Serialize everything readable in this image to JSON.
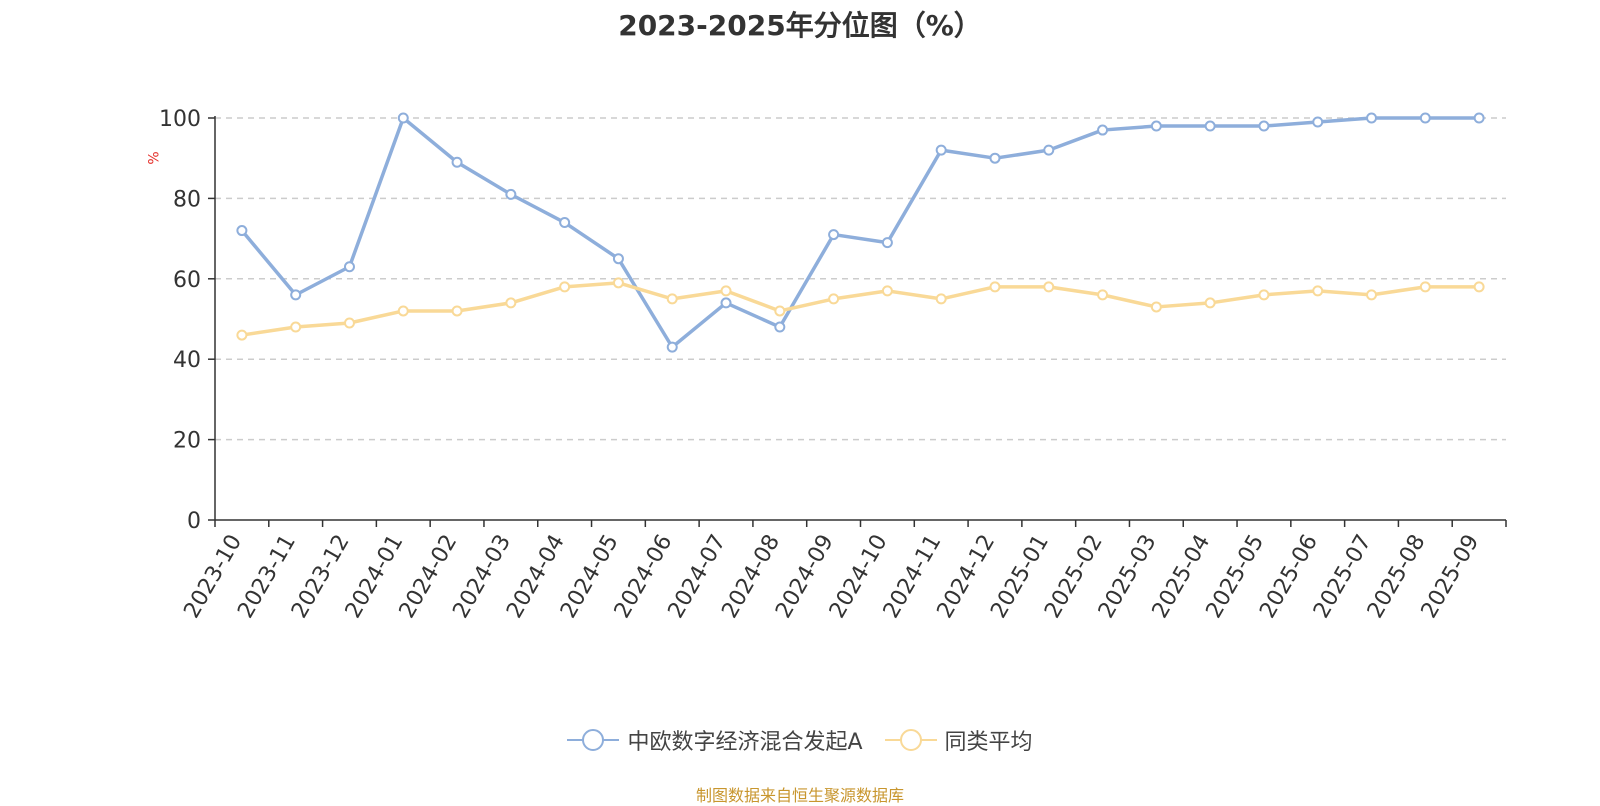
{
  "chart_data": {
    "type": "line",
    "title": "2023-2025年分位图（%）",
    "ylabel": "%",
    "xlabel": "",
    "ylim": [
      0,
      100
    ],
    "yticks": [
      0,
      20,
      40,
      60,
      80,
      100
    ],
    "grid": true,
    "legend_position": "bottom",
    "categories": [
      "2023-10",
      "2023-11",
      "2023-12",
      "2024-01",
      "2024-02",
      "2024-03",
      "2024-04",
      "2024-05",
      "2024-06",
      "2024-07",
      "2024-08",
      "2024-09",
      "2024-10",
      "2024-11",
      "2024-12",
      "2025-01",
      "2025-02",
      "2025-03",
      "2025-04",
      "2025-05",
      "2025-06",
      "2025-07",
      "2025-08",
      "2025-09"
    ],
    "series": [
      {
        "name": "中欧数字经济混合发起A",
        "color": "#8eaedb",
        "values": [
          72,
          56,
          63,
          100,
          89,
          81,
          74,
          65,
          43,
          54,
          48,
          71,
          69,
          92,
          90,
          92,
          97,
          98,
          98,
          98,
          99,
          100,
          100,
          100
        ]
      },
      {
        "name": "同类平均",
        "color": "#f9d997",
        "values": [
          46,
          48,
          49,
          52,
          52,
          54,
          58,
          59,
          55,
          57,
          52,
          55,
          57,
          55,
          58,
          58,
          56,
          53,
          54,
          56,
          57,
          56,
          58,
          58
        ]
      }
    ],
    "y_unit_color": "#e5322d"
  },
  "footer": {
    "source_note": "制图数据来自恒生聚源数据库",
    "source_color": "#c8962e"
  }
}
